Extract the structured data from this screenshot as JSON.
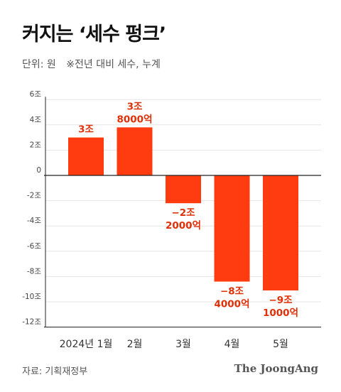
{
  "title": "커지는 ‘세수 펑크’",
  "unit_label": "단위: 원",
  "note": "※전년 대비 세수, 누계",
  "source": "자료: 기획재정부",
  "brand": "The JoongAng",
  "colors": {
    "bar": "#ff3b0f",
    "label": "#e03008",
    "axis": "#222222",
    "grid": "#e6e6e6",
    "tick_text": "#444444"
  },
  "chart_data": {
    "type": "bar",
    "title": "커지는 ‘세수 펑크’",
    "ylabel": "단위: 원",
    "categories": [
      "2024년 1월",
      "2월",
      "3월",
      "4월",
      "5월"
    ],
    "values": [
      3.0,
      3.8,
      -2.2,
      -8.4,
      -9.1
    ],
    "value_labels": [
      [
        "3조"
      ],
      [
        "3조",
        "8000억"
      ],
      [
        "−2조",
        "2000억"
      ],
      [
        "−8조",
        "4000억"
      ],
      [
        "−9조",
        "1000억"
      ]
    ],
    "ylim": [
      -12,
      6
    ],
    "yticks": [
      6,
      4,
      2,
      0,
      -2,
      -4,
      -6,
      -8,
      -10,
      -12
    ],
    "ytick_labels": [
      "6조",
      "4조",
      "2조",
      "0",
      "-2조",
      "-4조",
      "-6조",
      "-8조",
      "-10조",
      "-12조"
    ],
    "grid": true,
    "legend": "none"
  }
}
